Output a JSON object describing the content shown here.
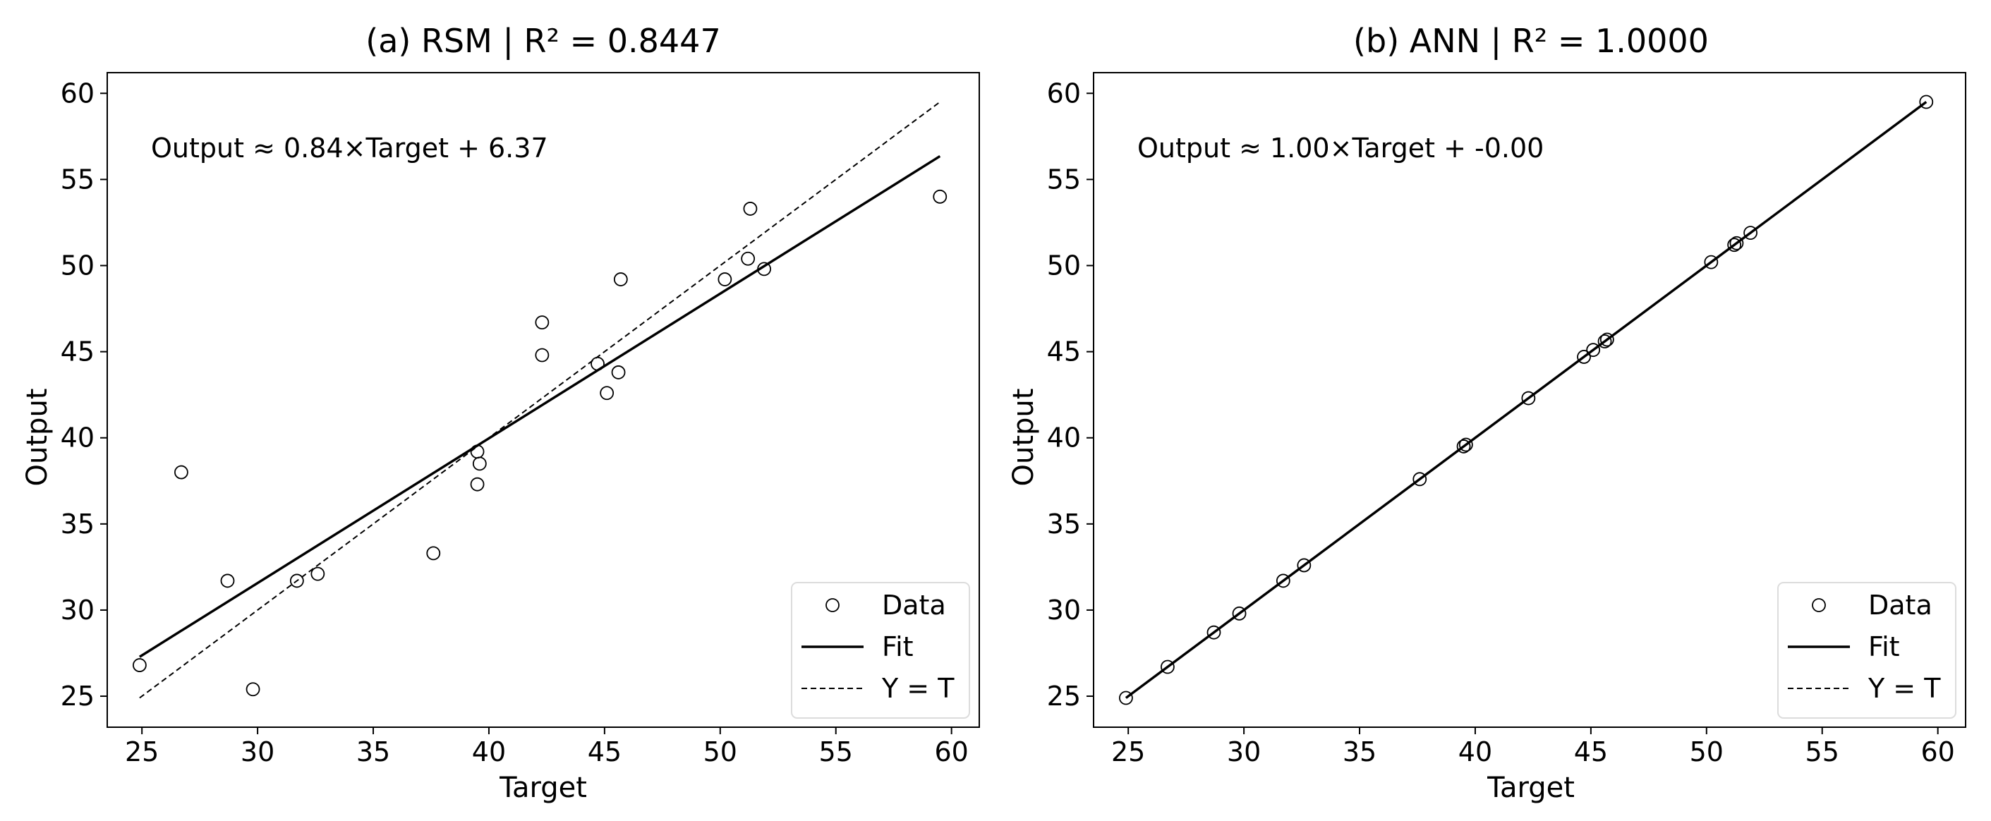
{
  "chart_data": [
    {
      "type": "scatter",
      "title": "(a) RSM | R² = 0.8447",
      "xlabel": "Target",
      "ylabel": "Output",
      "xlim": [
        23.5,
        61.2
      ],
      "ylim": [
        23.2,
        61.2
      ],
      "xticks": [
        25,
        30,
        35,
        40,
        45,
        50,
        55,
        60
      ],
      "yticks": [
        25,
        30,
        35,
        40,
        45,
        50,
        55,
        60
      ],
      "annotation": "Output ≈ 0.84×Target + 6.37",
      "fit": {
        "slope": 0.84,
        "intercept": 6.37,
        "x_range": [
          24.9,
          59.5
        ]
      },
      "reference": {
        "x_range": [
          24.9,
          59.5
        ]
      },
      "grid": false,
      "legend_position": "bottom-right",
      "legend": [
        "Data",
        "Fit",
        "Y = T"
      ],
      "points": [
        {
          "x": 24.9,
          "y": 26.8
        },
        {
          "x": 26.7,
          "y": 38.0
        },
        {
          "x": 28.7,
          "y": 31.7
        },
        {
          "x": 29.8,
          "y": 25.4
        },
        {
          "x": 31.7,
          "y": 31.7
        },
        {
          "x": 32.6,
          "y": 32.1
        },
        {
          "x": 37.6,
          "y": 33.3
        },
        {
          "x": 39.5,
          "y": 37.3
        },
        {
          "x": 39.5,
          "y": 39.2
        },
        {
          "x": 39.6,
          "y": 38.5
        },
        {
          "x": 42.3,
          "y": 44.8
        },
        {
          "x": 42.3,
          "y": 46.7
        },
        {
          "x": 44.7,
          "y": 44.3
        },
        {
          "x": 45.1,
          "y": 42.6
        },
        {
          "x": 45.6,
          "y": 43.8
        },
        {
          "x": 45.7,
          "y": 49.2
        },
        {
          "x": 50.2,
          "y": 49.2
        },
        {
          "x": 51.2,
          "y": 50.4
        },
        {
          "x": 51.3,
          "y": 53.3
        },
        {
          "x": 51.9,
          "y": 49.8
        },
        {
          "x": 59.5,
          "y": 54.0
        }
      ]
    },
    {
      "type": "scatter",
      "title": "(b) ANN | R² = 1.0000",
      "xlabel": "Target",
      "ylabel": "Output",
      "xlim": [
        23.5,
        61.2
      ],
      "ylim": [
        23.2,
        61.2
      ],
      "xticks": [
        25,
        30,
        35,
        40,
        45,
        50,
        55,
        60
      ],
      "yticks": [
        25,
        30,
        35,
        40,
        45,
        50,
        55,
        60
      ],
      "annotation": "Output ≈ 1.00×Target + -0.00",
      "fit": {
        "slope": 1.0,
        "intercept": 0.0,
        "x_range": [
          24.9,
          59.5
        ]
      },
      "reference": {
        "x_range": [
          24.9,
          59.5
        ]
      },
      "grid": false,
      "legend_position": "bottom-right",
      "legend": [
        "Data",
        "Fit",
        "Y = T"
      ],
      "points": [
        {
          "x": 24.9,
          "y": 24.9
        },
        {
          "x": 26.7,
          "y": 26.7
        },
        {
          "x": 28.7,
          "y": 28.7
        },
        {
          "x": 29.8,
          "y": 29.8
        },
        {
          "x": 31.7,
          "y": 31.7
        },
        {
          "x": 32.6,
          "y": 32.6
        },
        {
          "x": 37.6,
          "y": 37.6
        },
        {
          "x": 39.5,
          "y": 39.5
        },
        {
          "x": 39.6,
          "y": 39.6
        },
        {
          "x": 42.3,
          "y": 42.3
        },
        {
          "x": 44.7,
          "y": 44.7
        },
        {
          "x": 45.1,
          "y": 45.1
        },
        {
          "x": 45.6,
          "y": 45.6
        },
        {
          "x": 45.7,
          "y": 45.7
        },
        {
          "x": 50.2,
          "y": 50.2
        },
        {
          "x": 51.2,
          "y": 51.2
        },
        {
          "x": 51.3,
          "y": 51.3
        },
        {
          "x": 51.9,
          "y": 51.9
        },
        {
          "x": 59.5,
          "y": 59.5
        }
      ]
    }
  ]
}
